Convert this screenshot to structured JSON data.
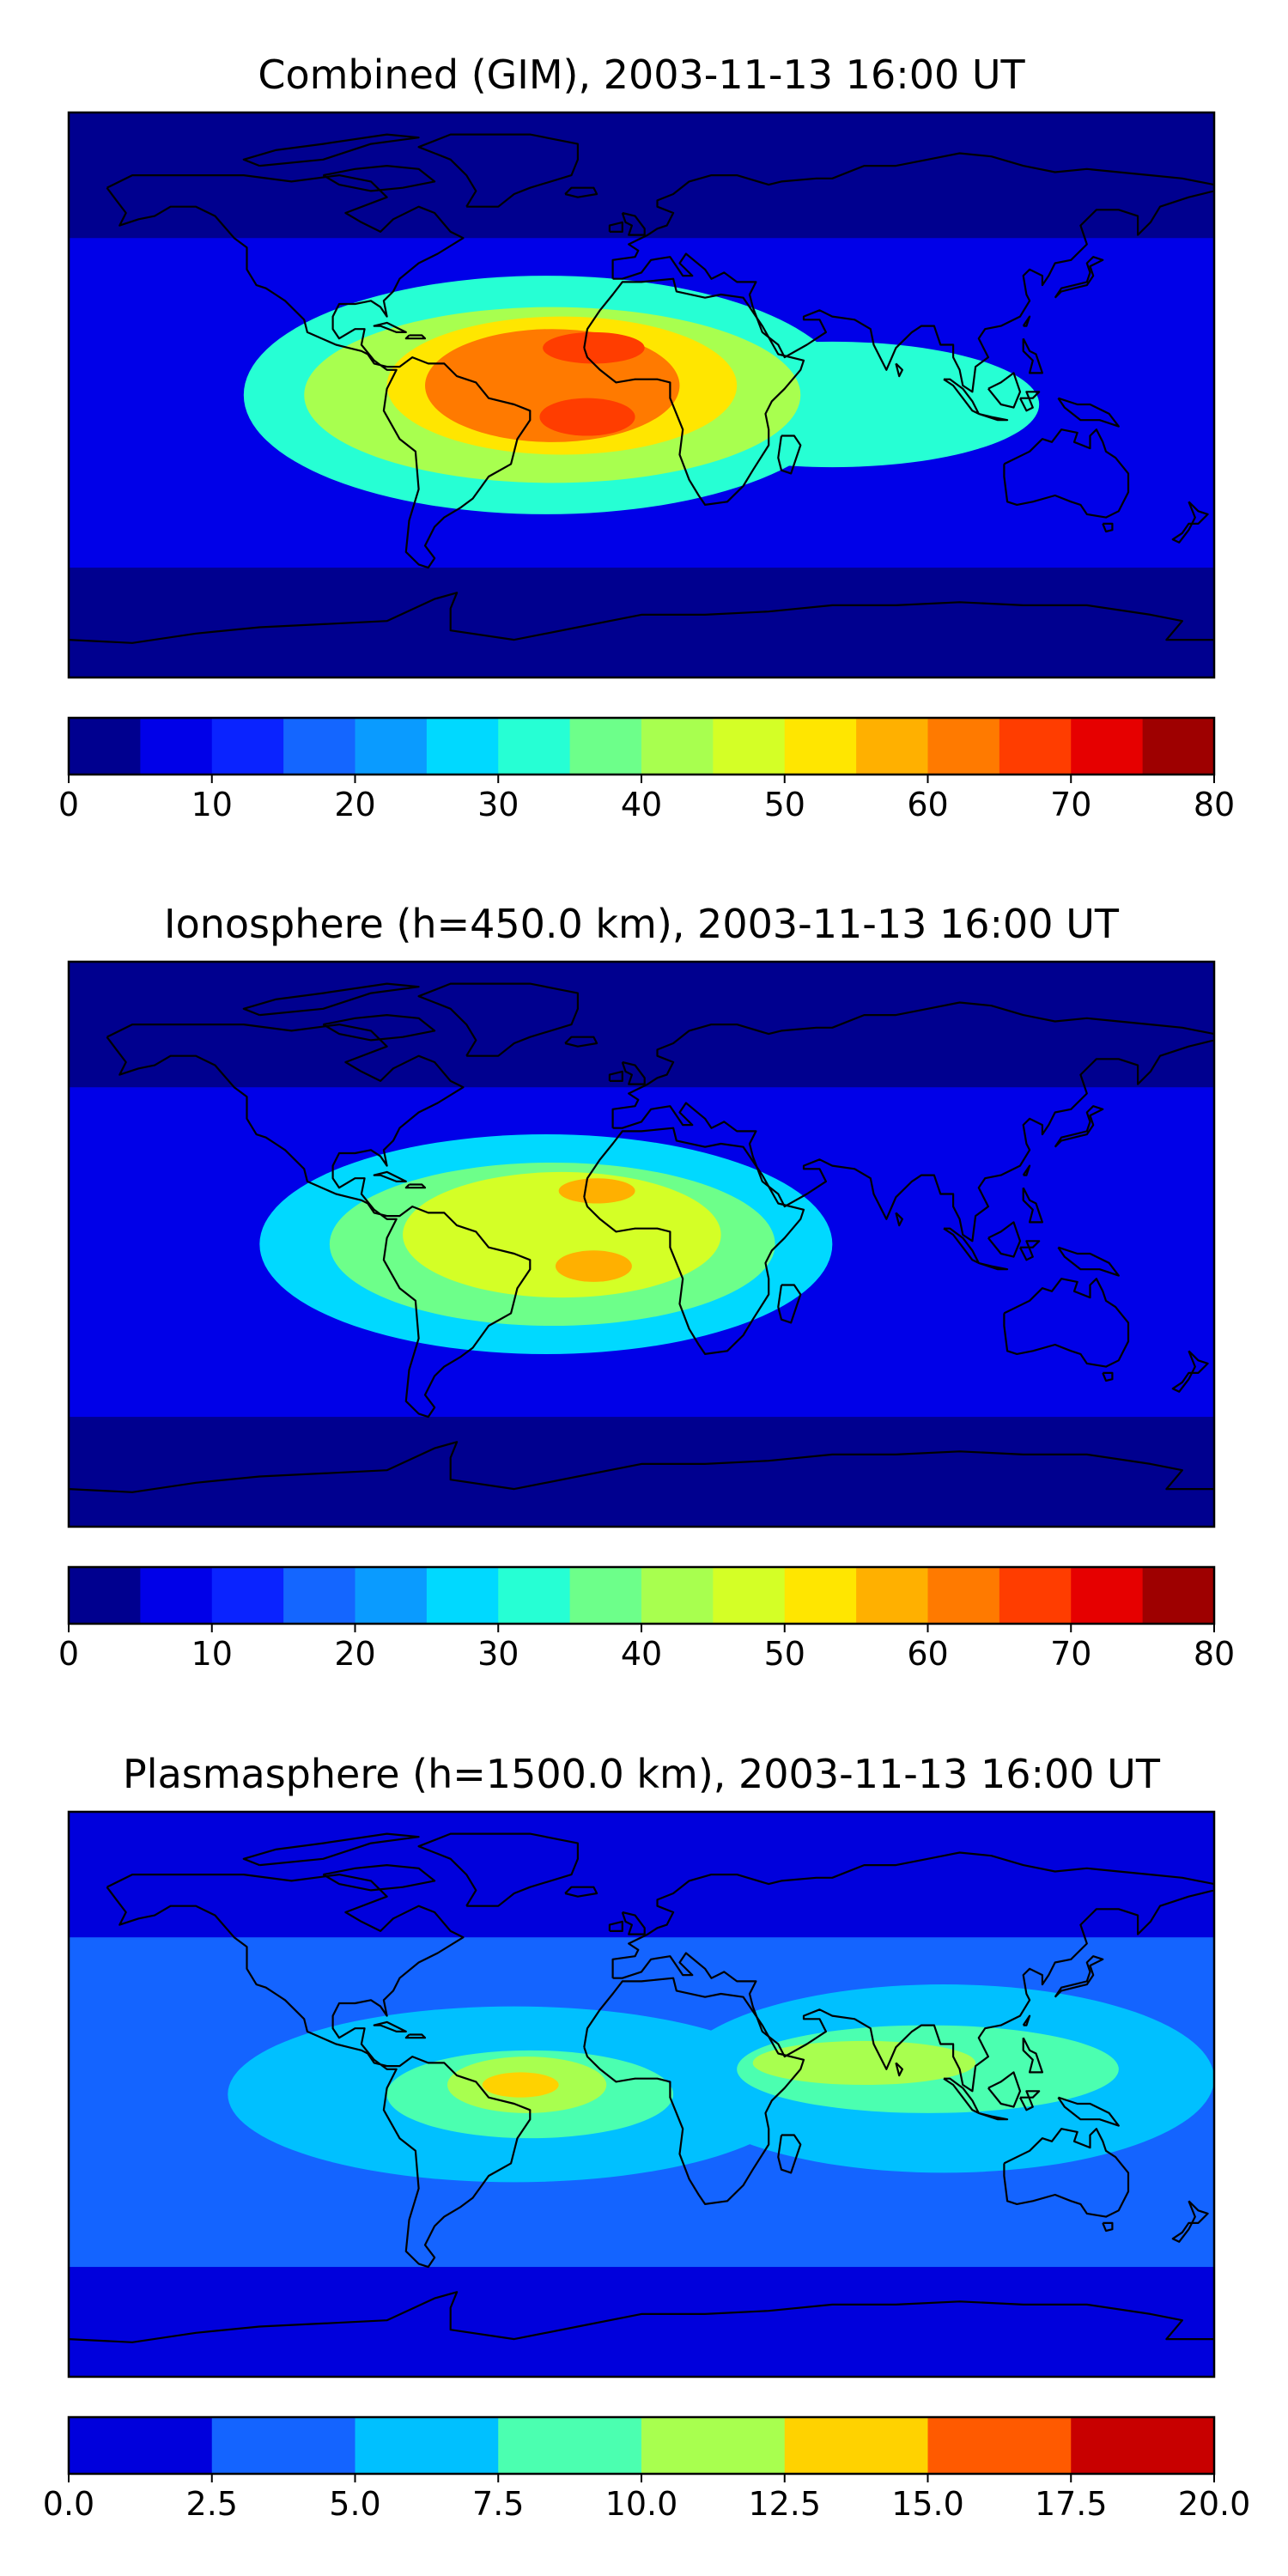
{
  "chart_data": [
    {
      "type": "heatmap",
      "title": "Combined (GIM), 2003-11-13 16:00 UT",
      "colorbar": {
        "ticks": [
          "0",
          "10",
          "20",
          "30",
          "40",
          "50",
          "60",
          "70",
          "80"
        ],
        "range": [
          0,
          80
        ],
        "step": 5,
        "colors": [
          "#00008f",
          "#0000e8",
          "#0a23ff",
          "#1466ff",
          "#0a9bff",
          "#00d9ff",
          "#26ffd4",
          "#6dff8a",
          "#a8ff4f",
          "#d4ff26",
          "#ffe600",
          "#ffb000",
          "#ff7a00",
          "#ff3d00",
          "#e60000",
          "#9e0000"
        ]
      },
      "blobs": [
        {
          "lon": -30,
          "lat": 0,
          "rx": 95,
          "ry": 38,
          "value": 30
        },
        {
          "lon": 60,
          "lat": -3,
          "rx": 65,
          "ry": 20,
          "value": 30
        },
        {
          "lon": -28,
          "lat": 0,
          "rx": 78,
          "ry": 28,
          "value": 40
        },
        {
          "lon": -25,
          "lat": 3,
          "rx": 55,
          "ry": 22,
          "value": 50
        },
        {
          "lon": -28,
          "lat": 3,
          "rx": 40,
          "ry": 18,
          "value": 60
        },
        {
          "lon": -15,
          "lat": 15,
          "rx": 16,
          "ry": 5,
          "value": 67
        },
        {
          "lon": -17,
          "lat": -7,
          "rx": 15,
          "ry": 6,
          "value": 65
        }
      ]
    },
    {
      "type": "heatmap",
      "title": "Ionosphere  (h=450.0 km), 2003-11-13 16:00 UT",
      "colorbar": {
        "ticks": [
          "0",
          "10",
          "20",
          "30",
          "40",
          "50",
          "60",
          "70",
          "80"
        ],
        "range": [
          0,
          80
        ],
        "step": 5,
        "colors": [
          "#00008f",
          "#0000e8",
          "#0a23ff",
          "#1466ff",
          "#0a9bff",
          "#00d9ff",
          "#26ffd4",
          "#6dff8a",
          "#a8ff4f",
          "#d4ff26",
          "#ffe600",
          "#ffb000",
          "#ff7a00",
          "#ff3d00",
          "#e60000",
          "#9e0000"
        ]
      },
      "blobs": [
        {
          "lon": -30,
          "lat": 0,
          "rx": 90,
          "ry": 35,
          "value": 25
        },
        {
          "lon": -28,
          "lat": 0,
          "rx": 70,
          "ry": 26,
          "value": 35
        },
        {
          "lon": -25,
          "lat": 3,
          "rx": 50,
          "ry": 20,
          "value": 45
        },
        {
          "lon": -14,
          "lat": 17,
          "rx": 12,
          "ry": 4,
          "value": 58
        },
        {
          "lon": -15,
          "lat": -7,
          "rx": 12,
          "ry": 5,
          "value": 57
        }
      ]
    },
    {
      "type": "heatmap",
      "title": "Plasmasphere (h=1500.0 km), 2003-11-13 16:00 UT",
      "colorbar": {
        "ticks": [
          "0.0",
          "2.5",
          "5.0",
          "7.5",
          "10.0",
          "12.5",
          "15.0",
          "17.5",
          "20.0"
        ],
        "range": [
          0,
          20
        ],
        "step": 2.5,
        "colors": [
          "#0000dc",
          "#1464ff",
          "#00c0ff",
          "#4bffb0",
          "#a8ff4f",
          "#ffd200",
          "#ff5a00",
          "#c80000"
        ]
      },
      "blobs": [
        {
          "lon": -40,
          "lat": 0,
          "rx": 90,
          "ry": 28,
          "value": 6
        },
        {
          "lon": 95,
          "lat": 5,
          "rx": 85,
          "ry": 30,
          "value": 6
        },
        {
          "lon": -35,
          "lat": 0,
          "rx": 45,
          "ry": 14,
          "value": 8.5
        },
        {
          "lon": 90,
          "lat": 8,
          "rx": 60,
          "ry": 14,
          "value": 8.5
        },
        {
          "lon": -36,
          "lat": 3,
          "rx": 25,
          "ry": 9,
          "value": 11
        },
        {
          "lon": 70,
          "lat": 10,
          "rx": 35,
          "ry": 7,
          "value": 11
        },
        {
          "lon": -38,
          "lat": 3,
          "rx": 12,
          "ry": 4,
          "value": 13.5
        }
      ]
    }
  ]
}
